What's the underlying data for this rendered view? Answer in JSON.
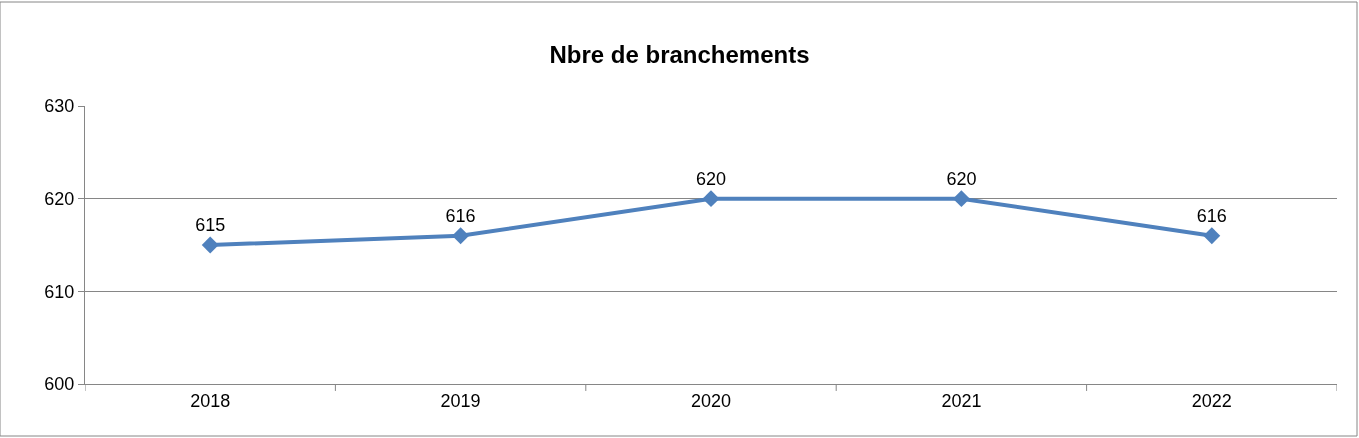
{
  "chart_data": {
    "type": "line",
    "title": "Nbre de branchements",
    "categories": [
      "2018",
      "2019",
      "2020",
      "2021",
      "2022"
    ],
    "series": [
      {
        "color": "#4f81bd",
        "values": [
          615,
          616,
          620,
          620,
          616
        ]
      }
    ],
    "ylim": [
      600,
      630
    ],
    "yticks": [
      600,
      610,
      620,
      630
    ],
    "grid": "y",
    "data_labels": true,
    "marker": "diamond",
    "line_style": "solid"
  }
}
